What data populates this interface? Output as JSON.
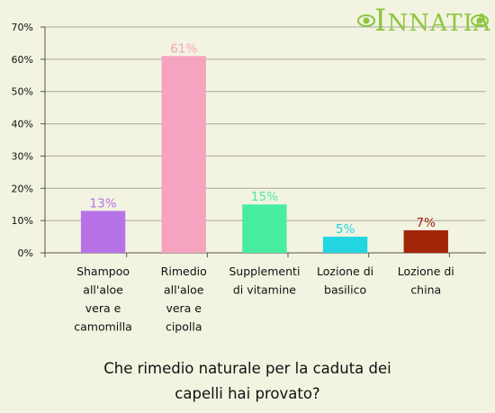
{
  "logo": {
    "text": "Innatia",
    "colors": {
      "leaf": "#8dc63f"
    }
  },
  "question": {
    "line1": "Che rimedio naturale per la caduta dei",
    "line2": "capelli hai provato?"
  },
  "chart_data": {
    "type": "bar",
    "categories": [
      [
        "Shampoo",
        "all'aloe",
        "vera e",
        "camomilla"
      ],
      [
        "Rimedio",
        "all'aloe",
        "vera e",
        "cipolla"
      ],
      [
        "Supplementi",
        "di vitamine"
      ],
      [
        "Lozione di",
        "basilico"
      ],
      [
        "Lozione di",
        "china"
      ]
    ],
    "values": [
      13,
      61,
      15,
      5,
      7
    ],
    "value_labels": [
      "13%",
      "61%",
      "15%",
      "5%",
      "7%"
    ],
    "colors": [
      "#b872e8",
      "#f5a3be",
      "#48ee9f",
      "#22d5e1",
      "#a22507"
    ],
    "yticks": [
      "0%",
      "10%",
      "20%",
      "30%",
      "40%",
      "50%",
      "60%",
      "70%"
    ],
    "ylim": [
      0,
      70
    ],
    "grid": true,
    "grid_color": "#a8a8a8",
    "axis_color": "#555555"
  }
}
